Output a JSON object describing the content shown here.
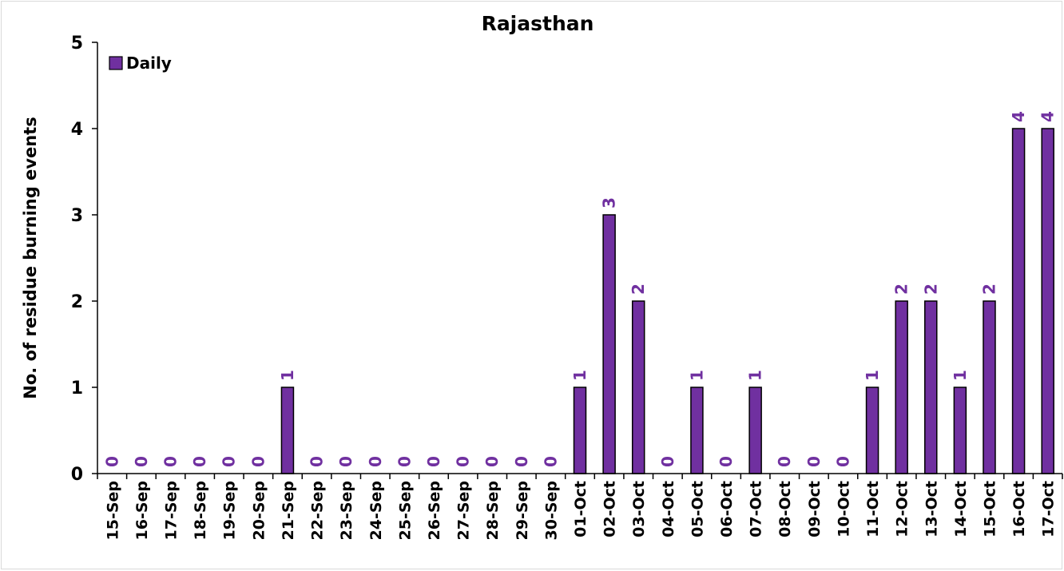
{
  "chart_data": {
    "type": "bar",
    "title": "Rajasthan",
    "xlabel": "",
    "ylabel": "No. of residue burning events",
    "ylim": [
      0,
      5
    ],
    "yticks": [
      0,
      1,
      2,
      3,
      4,
      5
    ],
    "grid": false,
    "legend_position": "top-left",
    "bar_color": "#7030a0",
    "label_color": "#7030a0",
    "categories": [
      "15-Sep",
      "16-Sep",
      "17-Sep",
      "18-Sep",
      "19-Sep",
      "20-Sep",
      "21-Sep",
      "22-Sep",
      "23-Sep",
      "24-Sep",
      "25-Sep",
      "26-Sep",
      "27-Sep",
      "28-Sep",
      "29-Sep",
      "30-Sep",
      "01-Oct",
      "02-Oct",
      "03-Oct",
      "04-Oct",
      "05-Oct",
      "06-Oct",
      "07-Oct",
      "08-Oct",
      "09-Oct",
      "10-Oct",
      "11-Oct",
      "12-Oct",
      "13-Oct",
      "14-Oct",
      "15-Oct",
      "16-Oct",
      "17-Oct"
    ],
    "series": [
      {
        "name": "Daily",
        "values": [
          0,
          0,
          0,
          0,
          0,
          0,
          1,
          0,
          0,
          0,
          0,
          0,
          0,
          0,
          0,
          0,
          1,
          3,
          2,
          0,
          1,
          0,
          1,
          0,
          0,
          0,
          1,
          2,
          2,
          1,
          2,
          4,
          4
        ]
      }
    ]
  }
}
